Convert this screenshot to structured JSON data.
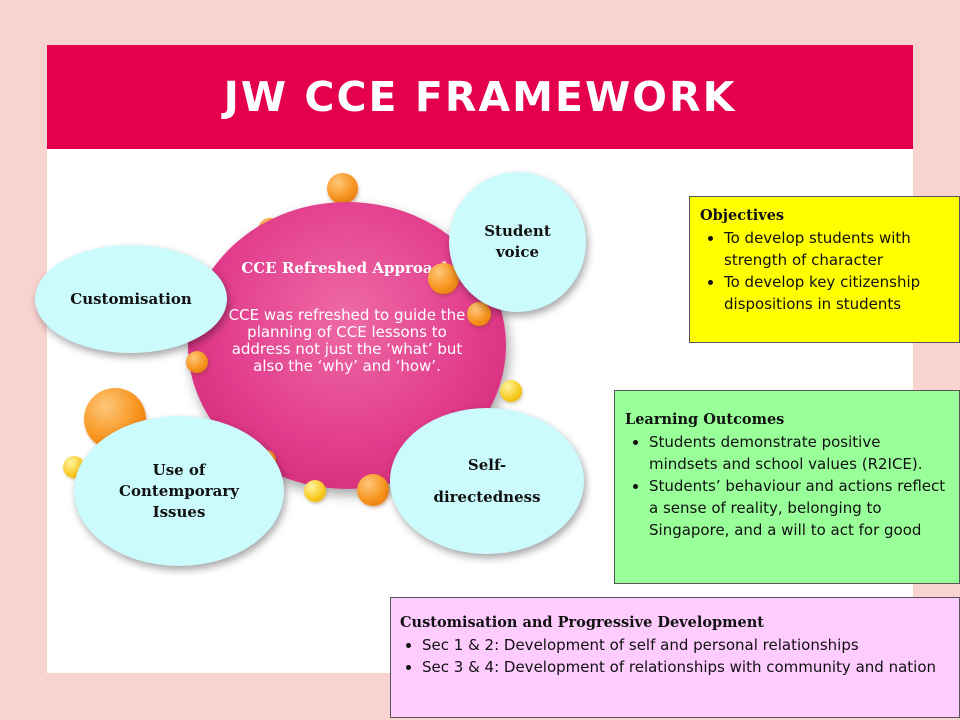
{
  "title": "JW CCE FRAMEWORK",
  "diagram": {
    "center": {
      "title": "CCE Refreshed Approach",
      "body": "CCE was refreshed to guide the planning of CCE lessons to address not just the ‘what’ but also the ‘why’ and ‘how’."
    },
    "nodes": {
      "customisation": "Customisation",
      "student_voice": "Student voice",
      "contemporary_issues": "Use of Contemporary Issues",
      "self_directedness": "Self-directedness"
    }
  },
  "objectives": {
    "title": "Objectives",
    "items": [
      "To develop students with strength of character",
      "To develop key citizenship dispositions in students"
    ],
    "color": "#ffff00"
  },
  "learning_outcomes": {
    "title": "Learning Outcomes",
    "items": [
      "Students demonstrate positive mindsets and school values (R2ICE).",
      "Students’ behaviour and actions reflect a sense of reality, belonging to Singapore, and a will to act for good"
    ],
    "color": "#99ff99"
  },
  "progressive_development": {
    "title": "Customisation and Progressive Development",
    "items": [
      "Sec 1 & 2: Development of self and personal relationships",
      "Sec 3 & 4: Development of relationships with community and nation"
    ],
    "color": "#ffccff"
  },
  "colors": {
    "background": "#f8d3d0",
    "title_bar": "#e5004f",
    "center_circle": "#e23d8c",
    "node_fill": "#ccfbfd"
  }
}
